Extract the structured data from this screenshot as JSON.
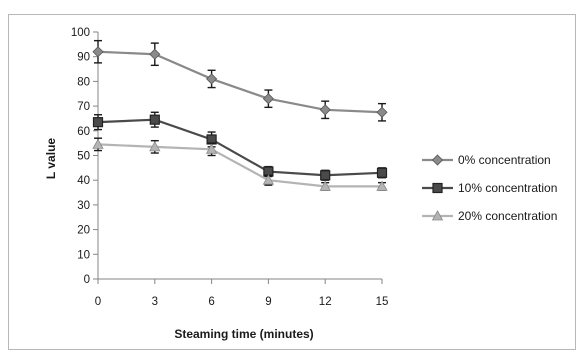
{
  "chart_data": {
    "type": "line",
    "title": "",
    "xlabel": "Steaming time (minutes)",
    "ylabel": "L value",
    "x": [
      0,
      3,
      6,
      9,
      12,
      15
    ],
    "x_tick_labels": [
      "0",
      "3",
      "6",
      "9",
      "12",
      "15"
    ],
    "ylim": [
      0,
      100
    ],
    "y_ticks": [
      0,
      10,
      20,
      30,
      40,
      50,
      60,
      70,
      80,
      90,
      100
    ],
    "grid": false,
    "legend_position": "right",
    "series": [
      {
        "name": "0% concentration",
        "values": [
          92,
          91,
          81,
          73,
          68.5,
          67.5
        ],
        "error": [
          4.5,
          4.5,
          3.5,
          3.5,
          3.5,
          3.5
        ],
        "color": "#8a8a8a",
        "marker": "diamond"
      },
      {
        "name": "10% concentration",
        "values": [
          63.5,
          64.5,
          56.5,
          43.5,
          42,
          43
        ],
        "error": [
          3,
          3,
          3,
          2,
          2,
          2
        ],
        "color": "#4a4a4a",
        "marker": "square"
      },
      {
        "name": "20% concentration",
        "values": [
          54.5,
          53.5,
          52.5,
          40,
          37.5,
          37.5
        ],
        "error": [
          2.5,
          2.5,
          2.5,
          2,
          1.5,
          1.5
        ],
        "color": "#b4b4b4",
        "marker": "triangle"
      }
    ]
  }
}
